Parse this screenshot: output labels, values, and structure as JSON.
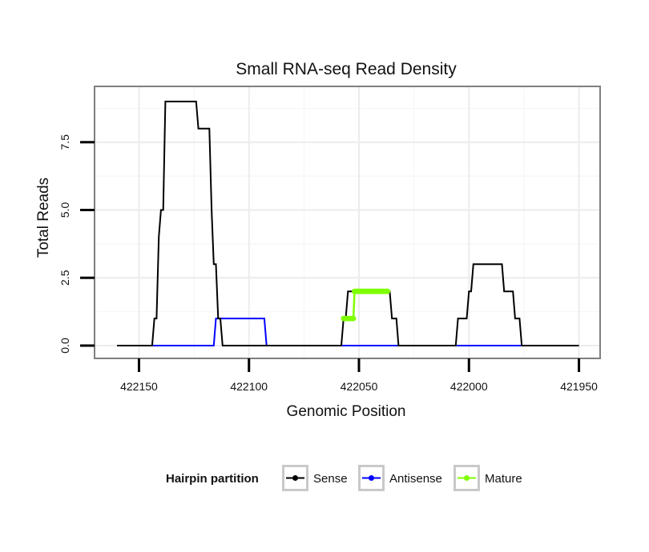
{
  "chart_data": {
    "type": "line",
    "title": "Small RNA-seq Read Density",
    "xlabel": "Genomic Position",
    "ylabel": "Total Reads",
    "xlim": [
      422160,
      421950
    ],
    "ylim": [
      -0.4,
      9.3
    ],
    "x_reversed": true,
    "x_ticks": [
      422150,
      422100,
      422050,
      422000,
      421950
    ],
    "x_tick_labels": [
      "422150",
      "422100",
      "422050",
      "422000",
      "421950"
    ],
    "y_ticks": [
      0,
      2.5,
      5,
      7.5
    ],
    "y_tick_labels": [
      "0.0",
      "2.5",
      "5.0",
      "7.5"
    ],
    "grid": true,
    "legend": {
      "title": "Hairpin partition",
      "position": "bottom"
    },
    "series": [
      {
        "name": "Sense",
        "color": "#000000",
        "x": [
          422160,
          422144,
          422143,
          422142,
          422141,
          422140,
          422139,
          422138,
          422137,
          422136,
          422135,
          422134,
          422129,
          422124,
          422123,
          422122,
          422121,
          422120,
          422119,
          422118,
          422117,
          422116,
          422115,
          422114,
          422113,
          422112,
          422111,
          422058,
          422057,
          422056,
          422055,
          422054,
          422053,
          422050,
          422045,
          422040,
          422038,
          422037,
          422036,
          422035,
          422034,
          422033,
          422032,
          422031,
          422006,
          422005,
          422004,
          422003,
          422002,
          422001,
          422000,
          421999,
          421998,
          421997,
          421996,
          421995,
          421992,
          421990,
          421989,
          421988,
          421987,
          421986,
          421985,
          421984,
          421983,
          421982,
          421981,
          421980,
          421979,
          421978,
          421977,
          421976,
          421975,
          421974,
          421950
        ],
        "y": [
          0,
          0,
          1,
          1,
          4,
          5,
          5,
          9,
          9,
          9,
          9,
          9,
          9,
          9,
          8,
          8,
          8,
          8,
          8,
          8,
          5,
          3,
          3,
          1,
          1,
          0,
          0,
          0,
          1,
          1,
          2,
          2,
          2,
          2,
          2,
          2,
          2,
          2,
          2,
          1,
          1,
          1,
          0,
          0,
          0,
          1,
          1,
          1,
          1,
          1,
          2,
          2,
          3,
          3,
          3,
          3,
          3,
          3,
          3,
          3,
          3,
          3,
          3,
          2,
          2,
          2,
          2,
          2,
          1,
          1,
          1,
          0,
          0,
          0,
          0
        ]
      },
      {
        "name": "Antisense",
        "color": "#0000ff",
        "x": [
          422144,
          422116,
          422115,
          422093,
          422092,
          421976
        ],
        "y": [
          0,
          0,
          1,
          1,
          0,
          0
        ]
      },
      {
        "name": "Mature",
        "color": "#7fff00",
        "x": [
          422057,
          422056.5,
          422056,
          422055.5,
          422055,
          422054.5,
          422054,
          422053.5,
          422053,
          422052.5,
          422052,
          422051.5,
          422051,
          422050.5,
          422050,
          422049.5,
          422049,
          422048.5,
          422048,
          422047.5,
          422047,
          422046.5,
          422046,
          422045.5,
          422045,
          422044.5,
          422044,
          422043.5,
          422043,
          422042.5,
          422042,
          422041.5,
          422041,
          422040.5,
          422040,
          422039.5,
          422039,
          422038.5,
          422038,
          422037.5,
          422037
        ],
        "y": [
          1,
          1,
          1,
          1,
          1,
          1,
          1,
          1,
          1,
          1,
          2,
          2,
          2,
          2,
          2,
          2,
          2,
          2,
          2,
          2,
          2,
          2,
          2,
          2,
          2,
          2,
          2,
          2,
          2,
          2,
          2,
          2,
          2,
          2,
          2,
          2,
          2,
          2,
          2,
          2,
          2
        ]
      }
    ]
  }
}
